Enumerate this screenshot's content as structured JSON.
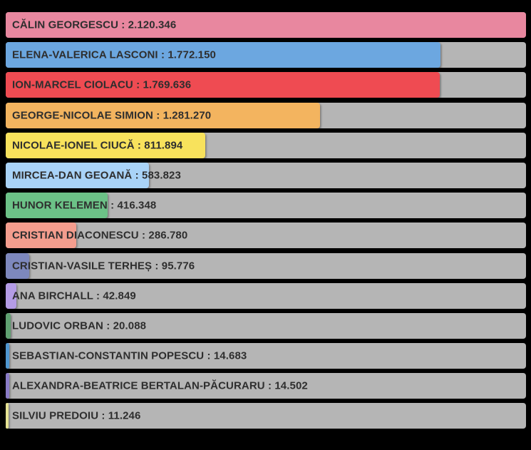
{
  "chart_data": {
    "type": "bar",
    "orientation": "horizontal",
    "title": "",
    "xlabel": "",
    "ylabel": "",
    "xlim": [
      0,
      2120346
    ],
    "grid": false,
    "legend": false,
    "label_separator": " : ",
    "categories": [
      "CĂLIN GEORGESCU",
      "ELENA-VALERICA LASCONI",
      "ION-MARCEL CIOLACU",
      "GEORGE-NICOLAE SIMION",
      "NICOLAE-IONEL CIUCĂ",
      "MIRCEA-DAN GEOANĂ",
      "HUNOR KELEMEN",
      "CRISTIAN DIACONESCU",
      "CRISTIAN-VASILE TERHEȘ",
      "ANA BIRCHALL",
      "LUDOVIC ORBAN",
      "SEBASTIAN-CONSTANTIN POPESCU",
      "ALEXANDRA-BEATRICE BERTALAN-PĂCURARU",
      "SILVIU PREDOIU"
    ],
    "values": [
      2120346,
      1772150,
      1769636,
      1281270,
      811894,
      583823,
      416348,
      286780,
      95776,
      42849,
      20088,
      14683,
      14502,
      11246
    ],
    "value_labels": [
      "2.120.346",
      "1.772.150",
      "1.769.636",
      "1.281.270",
      "811.894",
      "583.823",
      "416.348",
      "286.780",
      "95.776",
      "42.849",
      "20.088",
      "14.683",
      "14.502",
      "11.246"
    ],
    "bar_colors": [
      "#e8879f",
      "#6ca7e0",
      "#ef4b52",
      "#f3b45f",
      "#f8e25c",
      "#a9d3f7",
      "#6cc287",
      "#f49d8e",
      "#7d88bd",
      "#b49ce6",
      "#60a171",
      "#4f97d0",
      "#8a7cc7",
      "#e6e394"
    ],
    "track_color": "#b5b5b5",
    "background_color": "#000000",
    "label_text_color": "#2e2e2e"
  }
}
